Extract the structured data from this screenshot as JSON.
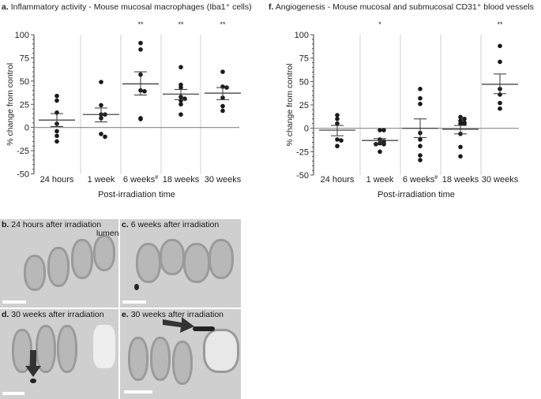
{
  "panels": {
    "a": {
      "letter": "a.",
      "title": "Inflammatory activity - Mouse mucosal macrophages (Iba1⁺ cells)"
    },
    "f": {
      "letter": "f.",
      "title": "Angiogenesis - Mouse mucosal and submucosal CD31⁺ blood vessels"
    },
    "b": {
      "letter": "b.",
      "title": "24 hours after irradiation",
      "annotation": "lumen"
    },
    "c": {
      "letter": "c.",
      "title": "6 weeks after irradiation"
    },
    "d": {
      "letter": "d.",
      "title": "30 weeks after irradiation"
    },
    "e": {
      "letter": "e.",
      "title": "30 weeks after irradiation"
    }
  },
  "chart_data": [
    {
      "type": "scatter",
      "title": "Inflammatory activity - Mouse mucosal macrophages (Iba1⁺ cells)",
      "xlabel": "Post-irradiation time",
      "ylabel": "% change from control",
      "ylim": [
        -50,
        100
      ],
      "yticks": [
        "100",
        "75",
        "50",
        "25",
        "0",
        "-25",
        "-50"
      ],
      "categories": [
        "24 hours",
        "1 week",
        "6 weeks#",
        "18 weeks",
        "30 weeks"
      ],
      "significance": [
        "",
        "",
        "**",
        "**",
        "**"
      ],
      "points": [
        [
          34,
          29,
          16,
          4,
          -4,
          -9,
          -15
        ],
        [
          49,
          24,
          14,
          14,
          10,
          -7,
          -10
        ],
        [
          91,
          84,
          57,
          40,
          39,
          10,
          9
        ],
        [
          65,
          46,
          43,
          33,
          31,
          29,
          25,
          14
        ],
        [
          60,
          44,
          43,
          32,
          23,
          18
        ]
      ],
      "mean": [
        8,
        14,
        47,
        36,
        37
      ],
      "sem_upper": [
        15,
        21,
        60,
        41,
        43
      ],
      "sem_lower": [
        1,
        6,
        35,
        30,
        30
      ]
    },
    {
      "type": "scatter",
      "title": "Angiogenesis - Mouse mucosal and submucosal CD31⁺ blood vessels",
      "xlabel": "Post-irradiation time",
      "ylabel": "% change from control",
      "ylim": [
        -50,
        100
      ],
      "yticks": [
        "100",
        "75",
        "50",
        "25",
        "0",
        "-25",
        "-50"
      ],
      "categories": [
        "24 hours",
        "1 week",
        "6 weeks#",
        "18 weeks",
        "30 weeks"
      ],
      "significance": [
        "",
        "*",
        "",
        "",
        "**"
      ],
      "points": [
        [
          14,
          10,
          5,
          -12,
          -13,
          -19
        ],
        [
          -2,
          -2,
          -12,
          -14,
          -16,
          -17,
          -17,
          -25
        ],
        [
          42,
          32,
          26,
          -5,
          -12,
          -19,
          -29,
          -34
        ],
        [
          12,
          10,
          8,
          6,
          5,
          5,
          -6,
          -20,
          -30
        ],
        [
          88,
          71,
          42,
          36,
          27,
          21
        ]
      ],
      "mean": [
        -2,
        -13,
        0,
        -1,
        47
      ],
      "sem_upper": [
        3,
        -11,
        10,
        3,
        58
      ],
      "sem_lower": [
        -8,
        -16,
        -10,
        -6,
        37
      ]
    }
  ]
}
